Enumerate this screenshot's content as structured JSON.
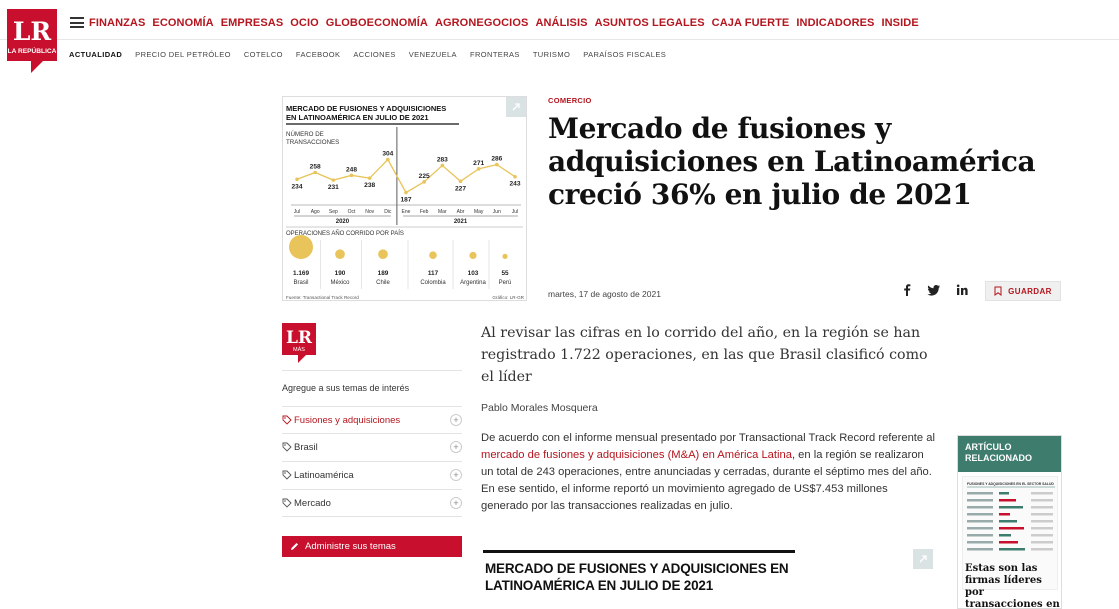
{
  "brand": {
    "logo_text": "LR",
    "logo_sub": "LA REPÚBLICA",
    "red": "#c8102e",
    "dark_red": "#b4151e",
    "green": "#3e7d6e"
  },
  "main_nav": [
    "FINANZAS",
    "ECONOMÍA",
    "EMPRESAS",
    "OCIO",
    "GLOBOECONOMÍA",
    "AGRONEGOCIOS",
    "ANÁLISIS",
    "ASUNTOS LEGALES",
    "CAJA FUERTE",
    "INDICADORES",
    "INSIDE"
  ],
  "sub_nav": [
    "ACTUALIDAD",
    "PRECIO DEL PETRÓLEO",
    "COTELCO",
    "FACEBOOK",
    "ACCIONES",
    "VENEZUELA",
    "FRONTERAS",
    "TURISMO",
    "PARAÍSOS FISCALES"
  ],
  "article": {
    "section": "COMERCIO",
    "headline": "Mercado de fusiones y adquisiciones en Latinoamérica creció 36% en julio de 2021",
    "date": "martes, 17 de agosto de 2021",
    "save_label": "GUARDAR",
    "lead": "Al revisar las cifras en lo corrido del año, en la región se han registrado 1.722 operaciones, en las que Brasil clasificó como el líder",
    "author": "Pablo Morales Mosquera",
    "body_part1": "De acuerdo con el informe mensual presentado por Transactional Track Record referente al ",
    "body_link": "mercado de fusiones y adquisiciones (M&A) en América Latina",
    "body_part2": ", en la región se realizaron un total de 243 operaciones, entre anunciadas y cerradas, durante el séptimo mes del año. En ese sentido, el informe reportó un movimiento agregado de US$7.453 millones generado por las transacciones realizadas en julio.",
    "chart_heading": "MERCADO DE FUSIONES Y ADQUISICIONES EN LATINOAMÉRICA EN JULIO DE 2021"
  },
  "sidebar": {
    "logo_text": "LR",
    "logo_sub": "MÁS",
    "heading": "Agregue a sus temas de interés",
    "topics": [
      {
        "label": "Fusiones y adquisiciones",
        "active": true
      },
      {
        "label": "Brasil",
        "active": false
      },
      {
        "label": "Latinoamérica",
        "active": false
      },
      {
        "label": "Mercado",
        "active": false
      }
    ],
    "admin_label": "Administre sus temas"
  },
  "related": {
    "heading_line1": "ARTÍCULO",
    "heading_line2": "RELACIONADO",
    "title": "Estas son las firmas líderes por transacciones en fusiones y",
    "image_caption": "FUSIONES Y ADQUISICIONES EN EL SECTOR SALUD"
  },
  "chart_data": {
    "type": "line",
    "title_line1": "MERCADO DE FUSIONES Y ADQUISICIONES",
    "title_line2": "EN LATINOAMÉRICA EN JULIO DE 2021",
    "ylabel_line1": "NÚMERO DE",
    "ylabel_line2": "TRANSACCIONES",
    "x": [
      "Jul",
      "Ago",
      "Sep",
      "Oct",
      "Nov",
      "Dic",
      "Ene",
      "Feb",
      "Mar",
      "Abr",
      "May",
      "Jun",
      "Jul"
    ],
    "values": [
      234,
      258,
      231,
      248,
      238,
      304,
      187,
      225,
      283,
      227,
      271,
      286,
      243
    ],
    "year_groups": [
      {
        "label": "2020",
        "from": 0,
        "to": 5
      },
      {
        "label": "2021",
        "from": 6,
        "to": 12
      }
    ],
    "line_color": "#e8c45a",
    "countries_heading": "OPERACIONES AÑO CORRIDO POR PAÍS",
    "countries": [
      {
        "name": "Brasil",
        "value": 1169,
        "label": "1.169"
      },
      {
        "name": "México",
        "value": 190,
        "label": "190"
      },
      {
        "name": "Chile",
        "value": 189,
        "label": "189"
      },
      {
        "name": "Colombia",
        "value": 117,
        "label": "117"
      },
      {
        "name": "Argentina",
        "value": 103,
        "label": "103"
      },
      {
        "name": "Perú",
        "value": 55,
        "label": "55"
      }
    ],
    "source": "Fuente: Transactional Track Record",
    "credit": "Gráfico: LR-GR"
  }
}
